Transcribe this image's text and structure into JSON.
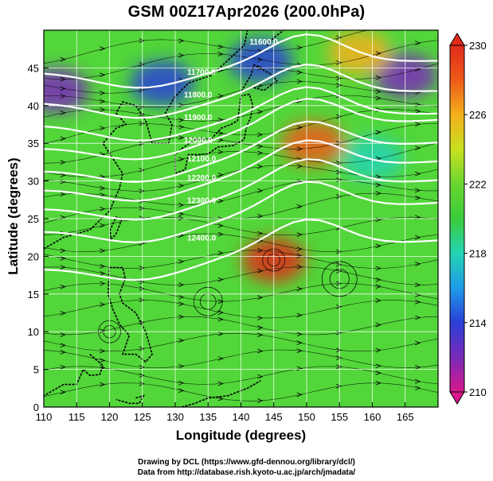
{
  "title": "GSM 00Z17Apr2026 (200.0hPa)",
  "credits": {
    "drawing": "Drawing by DCL (https://www.gfd-dennou.org/library/dcl/)",
    "data": "Data from http://database.rish.kyoto-u.ac.jp/arch/jmadata/"
  },
  "chart_data": {
    "type": "heatmap",
    "xlabel": "Longitude (degrees)",
    "ylabel": "Latitude  (degrees)",
    "xlim": [
      110,
      170
    ],
    "ylim": [
      0,
      50
    ],
    "xticks": [
      110,
      115,
      120,
      125,
      130,
      135,
      140,
      145,
      150,
      155,
      160,
      165
    ],
    "yticks": [
      0,
      5,
      10,
      15,
      20,
      25,
      30,
      35,
      40,
      45
    ],
    "grid": true,
    "colorbar": {
      "min": 210,
      "max": 230,
      "ticks": [
        210,
        214,
        218,
        222,
        226,
        230
      ],
      "colors": [
        "#d8188c",
        "#7a2ab8",
        "#2a3fd6",
        "#1f9be8",
        "#24d4b4",
        "#3ccc3c",
        "#6ad630",
        "#c8e020",
        "#f4b01c",
        "#ee5a18",
        "#e02a1a"
      ]
    },
    "color_features": [
      {
        "lon": 112,
        "lat": 42,
        "value": 211
      },
      {
        "lon": 128,
        "lat": 43,
        "value": 213
      },
      {
        "lon": 143,
        "lat": 46,
        "value": 214
      },
      {
        "lon": 165,
        "lat": 44,
        "value": 212
      },
      {
        "lon": 151,
        "lat": 35,
        "value": 228
      },
      {
        "lon": 145,
        "lat": 19.5,
        "value": 229
      },
      {
        "lon": 158,
        "lat": 47,
        "value": 226
      },
      {
        "lon": 160,
        "lat": 33,
        "value": 218
      }
    ],
    "contours": [
      {
        "value": "11700.0",
        "label_lon": 134,
        "label_lat": 44.5
      },
      {
        "value": "11800.0",
        "label_lon": 133.5,
        "label_lat": 41.5
      },
      {
        "value": "11900.0",
        "label_lon": 133.5,
        "label_lat": 38.5
      },
      {
        "value": "12000.0",
        "label_lon": 133.5,
        "label_lat": 35.5
      },
      {
        "value": "12100.0",
        "label_lon": 134,
        "label_lat": 33
      },
      {
        "value": "12200.0",
        "label_lon": 134,
        "label_lat": 30.5
      },
      {
        "value": "12300.0",
        "label_lon": 134,
        "label_lat": 27.5
      },
      {
        "value": "12400.0",
        "label_lon": 134,
        "label_lat": 22.5
      },
      {
        "value": "11600.0",
        "label_lon": 143.5,
        "label_lat": 48.5
      }
    ]
  }
}
